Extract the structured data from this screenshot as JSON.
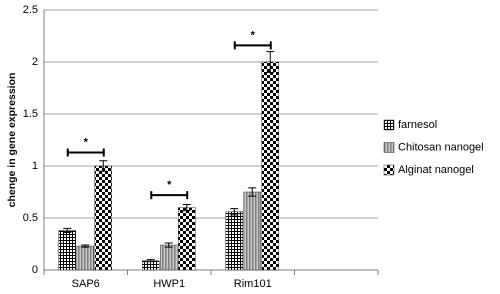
{
  "chart_data": {
    "type": "bar",
    "y_label": "chenge in gene expression",
    "categories": [
      "SAP6",
      "HWP1",
      "Rim101",
      null
    ],
    "series": [
      {
        "name": "farnesol",
        "color": "#000000",
        "pattern": "grid",
        "values": [
          0.38,
          0.09,
          0.56,
          null
        ],
        "errors": [
          0.02,
          0.01,
          0.03,
          null
        ]
      },
      {
        "name": "Chitosan nanogel",
        "color": "#808080",
        "pattern": "stripes",
        "values": [
          0.23,
          0.24,
          0.75,
          null
        ],
        "errors": [
          0.01,
          0.02,
          0.04,
          null
        ]
      },
      {
        "name": "Alginat nanogel",
        "color": "#000000",
        "pattern": "checker",
        "values": [
          1.0,
          0.6,
          2.0,
          null
        ],
        "errors": [
          0.05,
          0.03,
          0.1,
          null
        ]
      }
    ],
    "significance": [
      {
        "label": "*",
        "y": 1.13
      },
      {
        "label": "*",
        "y": 0.72
      },
      {
        "label": "*",
        "y": 2.16
      }
    ],
    "ylim": [
      0,
      2.5
    ],
    "yticks": [
      0,
      0.5,
      1,
      1.5,
      2,
      2.5
    ],
    "grid": true,
    "legend": "right"
  }
}
